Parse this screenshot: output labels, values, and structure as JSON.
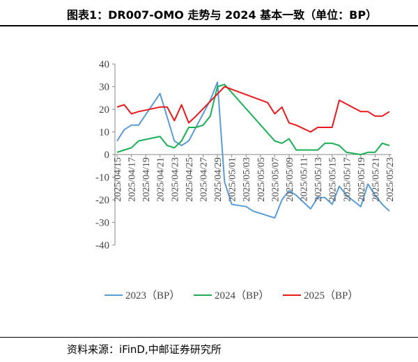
{
  "header": {
    "title": "图表1：DR007-OMO 走势与 2024 基本一致（单位：BP）"
  },
  "footer": {
    "source": "资料来源：iFinD,中邮证券研究所"
  },
  "chart_data": {
    "type": "line",
    "title": "DR007-OMO 走势与 2024 基本一致（单位：BP）",
    "xlabel": "",
    "ylabel": "",
    "ylim": [
      -40,
      40
    ],
    "yticks": [
      40,
      30,
      20,
      10,
      0,
      -10,
      -20,
      -30,
      -40
    ],
    "grid": false,
    "legend_position": "bottom",
    "x": [
      "2025/04/15",
      "2025/04/16",
      "2025/04/17",
      "2025/04/18",
      "2025/04/19",
      "2025/04/20",
      "2025/04/21",
      "2025/04/22",
      "2025/04/23",
      "2025/04/24",
      "2025/04/25",
      "2025/04/26",
      "2025/04/27",
      "2025/04/28",
      "2025/04/29",
      "2025/04/30",
      "2025/05/01",
      "2025/05/02",
      "2025/05/03",
      "2025/05/04",
      "2025/05/05",
      "2025/05/06",
      "2025/05/07",
      "2025/05/08",
      "2025/05/09",
      "2025/05/10",
      "2025/05/11",
      "2025/05/12",
      "2025/05/13",
      "2025/05/14",
      "2025/05/15",
      "2025/05/16",
      "2025/05/17",
      "2025/05/18",
      "2025/05/19",
      "2025/05/20",
      "2025/05/21",
      "2025/05/22",
      "2025/05/23"
    ],
    "xticks": [
      "2025/04/15",
      "2025/04/17",
      "2025/04/19",
      "2025/04/21",
      "2025/04/23",
      "2025/04/25",
      "2025/04/27",
      "2025/04/29",
      "2025/05/01",
      "2025/05/03",
      "2025/05/05",
      "2025/05/07",
      "2025/05/09",
      "2025/05/11",
      "2025/05/13",
      "2025/05/15",
      "2025/05/17",
      "2025/05/19",
      "2025/05/21",
      "2025/05/23"
    ],
    "series": [
      {
        "name": "2023（BP）",
        "color": "#5B9BD5",
        "values": [
          6,
          11,
          13,
          13,
          null,
          null,
          27,
          null,
          6,
          4,
          6,
          null,
          null,
          24,
          32,
          -12,
          -22,
          null,
          -23,
          -25,
          -26,
          -27,
          -28,
          -20,
          -16,
          -18,
          null,
          -24,
          -19,
          -19,
          -22,
          -14,
          -18,
          null,
          -23,
          -13,
          -18,
          -22,
          -25
        ]
      },
      {
        "name": "2024（BP）",
        "color": "#1AAF54",
        "values": [
          1,
          2,
          3,
          6,
          null,
          null,
          8,
          4,
          3,
          6,
          12,
          12,
          13,
          17,
          30,
          31,
          null,
          null,
          null,
          null,
          null,
          null,
          6,
          5,
          7,
          2,
          2,
          2,
          2,
          5,
          5,
          4,
          1,
          null,
          0,
          1,
          1,
          5,
          4
        ]
      },
      {
        "name": "2025（BP）",
        "color": "#E8191C",
        "values": [
          21,
          22,
          18,
          19,
          null,
          null,
          21,
          21,
          15,
          22,
          14,
          17,
          null,
          null,
          null,
          30,
          null,
          null,
          null,
          null,
          null,
          23,
          18,
          21,
          14,
          13,
          null,
          10,
          12,
          12,
          12,
          24,
          null,
          null,
          19,
          19,
          17,
          17,
          19
        ]
      }
    ]
  }
}
